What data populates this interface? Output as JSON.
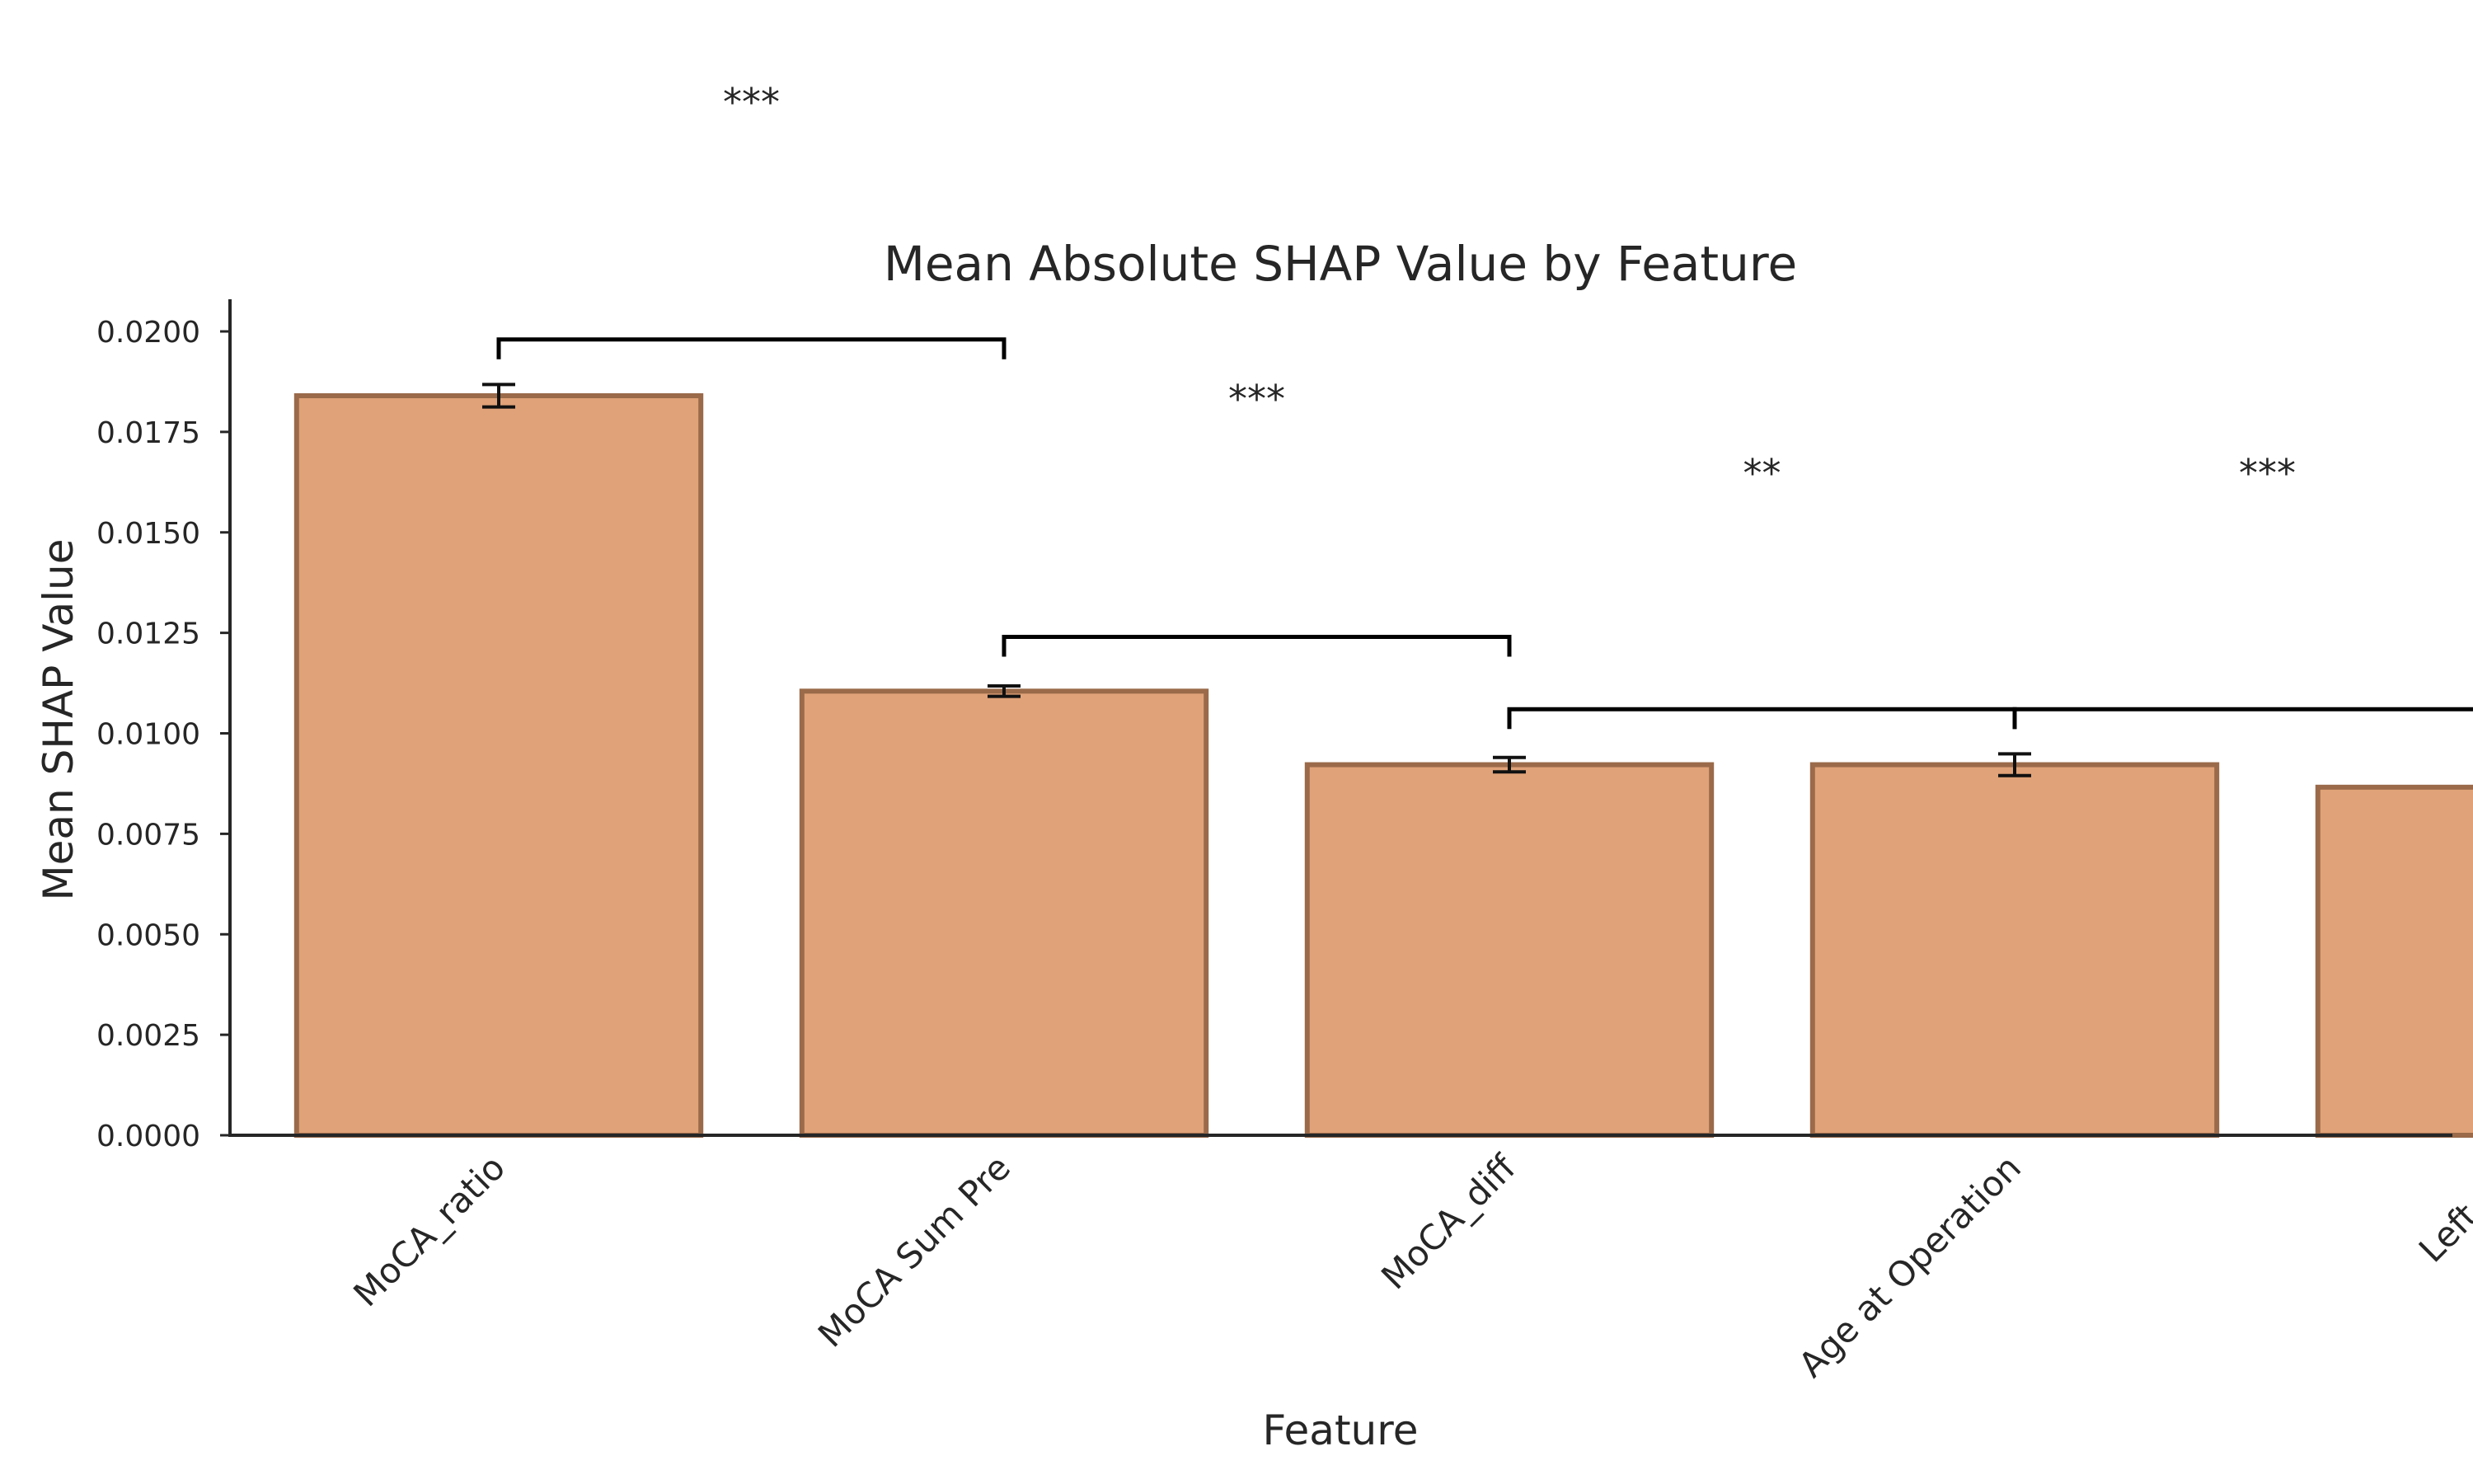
{
  "chart_data": {
    "type": "bar",
    "title": "Mean Absolute SHAP Value by Feature",
    "xlabel": "Feature",
    "ylabel": "Mean SHAP Value",
    "categories": [
      "MoCA_ratio",
      "MoCA Sum Pre",
      "MoCA_diff",
      "Age at Operation",
      "Left mA"
    ],
    "values": [
      0.0184,
      0.01105,
      0.00922,
      0.00922,
      0.00866
    ],
    "errors": [
      0.00028,
      0.00013,
      0.00018,
      0.00027,
      0.00011
    ],
    "ylim": [
      0,
      0.0208
    ],
    "yticks": [
      "0.0000",
      "0.0025",
      "0.0050",
      "0.0075",
      "0.0100",
      "0.0125",
      "0.0150",
      "0.0175",
      "0.0200"
    ],
    "ytick_values": [
      0,
      0.0025,
      0.005,
      0.0075,
      0.01,
      0.0125,
      0.015,
      0.0175,
      0.02
    ],
    "grid": false,
    "legend": "none",
    "colors": {
      "bar_fill": "#e0a278",
      "bar_edge": "#9a6a4a",
      "error_bar": "#111111",
      "bracket": "#000000"
    },
    "significance": [
      {
        "from": "MoCA_ratio",
        "to": "MoCA Sum Pre",
        "label": "***",
        "y": 0.0198
      },
      {
        "from": "MoCA Sum Pre",
        "to": "MoCA_diff",
        "label": "***",
        "y": 0.0124
      },
      {
        "from": "MoCA_diff",
        "to": "Age at Operation",
        "label": "**",
        "y": 0.0106
      },
      {
        "from": "Age at Operation",
        "to": "Left mA",
        "label": "***",
        "y": 0.0106
      }
    ]
  }
}
